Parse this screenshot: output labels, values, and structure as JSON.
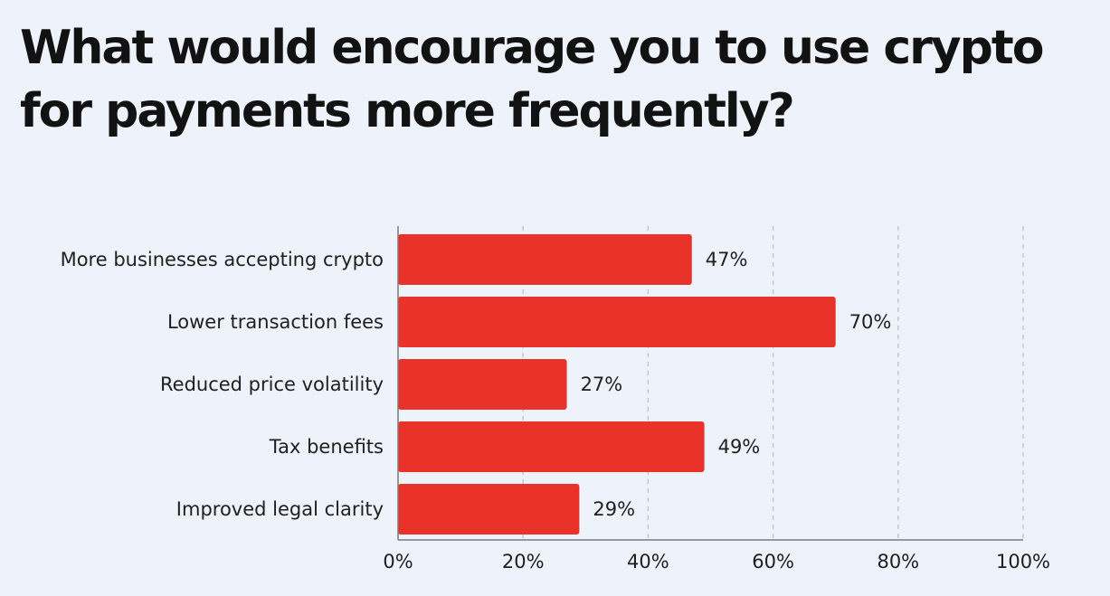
{
  "chart_data": {
    "type": "bar",
    "orientation": "horizontal",
    "title": "What would encourage you to use crypto for payments more frequently?",
    "categories": [
      "More businesses accepting crypto",
      "Lower transaction fees",
      "Reduced price volatility",
      "Tax benefits",
      "Improved legal clarity"
    ],
    "values": [
      47,
      70,
      27,
      49,
      29
    ],
    "value_labels": [
      "47%",
      "70%",
      "27%",
      "49%",
      "29%"
    ],
    "xlim": [
      0,
      100
    ],
    "x_ticks": [
      0,
      20,
      40,
      60,
      80,
      100
    ],
    "x_tick_labels": [
      "0%",
      "20%",
      "40%",
      "60%",
      "80%",
      "100%"
    ],
    "xlabel": "",
    "ylabel": "",
    "grid": "vertical dashed",
    "bar_color": "#e8322a",
    "background_color": "#eef2fa"
  }
}
